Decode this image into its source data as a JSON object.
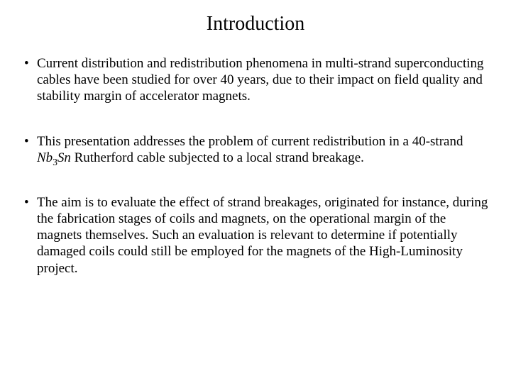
{
  "slide": {
    "title": "Introduction",
    "bullets": [
      {
        "text": "Current distribution and redistribution phenomena in multi-strand superconducting cables have been studied for over 40 years, due to their impact on field quality and stability margin of accelerator magnets."
      },
      {
        "pre": "This presentation addresses the problem of current redistribution in a 40-strand ",
        "formula_a": "Nb",
        "formula_sub": "3",
        "formula_b": "Sn",
        "post": " Rutherford cable subjected to a local strand breakage."
      },
      {
        "text": "The aim is to evaluate the effect of strand breakages, originated for instance, during the fabrication stages of coils and magnets, on the operational margin of the magnets themselves. Such an evaluation is relevant to determine if potentially damaged coils could still be employed for the magnets of the High-Luminosity project."
      }
    ]
  },
  "style": {
    "background": "#ffffff",
    "text_color": "#000000",
    "title_fontsize": 28,
    "body_fontsize": 19,
    "font_family": "Times New Roman"
  }
}
